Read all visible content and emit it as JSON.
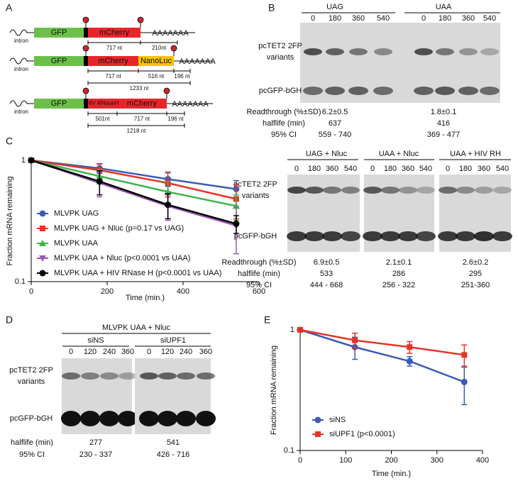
{
  "panel_labels": [
    "A",
    "B",
    "C",
    "D",
    "E"
  ],
  "panel_a": {
    "constructs": [
      {
        "intron": "intron",
        "segments": [
          "GFP",
          "mCherry"
        ],
        "poly_a": "AAAAAAA",
        "lengths": [
          "717 nt",
          "210nt"
        ]
      },
      {
        "intron": "intron",
        "segments": [
          "GFP",
          "mCherry",
          "NanoLuc"
        ],
        "poly_a": "AAAAAAA",
        "lengths": [
          "717 nt",
          "516 nt",
          "196 nt"
        ],
        "total": "1233 nt"
      },
      {
        "intron": "intron",
        "segments": [
          "GFP",
          "HIV RNaseH",
          "mCherry"
        ],
        "poly_a": "AAAAAAA",
        "lengths": [
          "501nt",
          "717 nt",
          "196 nt"
        ],
        "total": "1218 nt"
      }
    ]
  },
  "panel_b": {
    "top": {
      "groups": [
        "UAG",
        "UAA"
      ],
      "lanes": [
        0,
        180,
        360,
        540
      ],
      "band_upper": [
        "pcTET2 2FP",
        "variants"
      ],
      "band_lower": "pcGFP-bGH",
      "stats": [
        {
          "label": "Readthrough (%±SD)",
          "values": [
            "6.2±0.5",
            "1.8±0.1"
          ]
        },
        {
          "label": "halflife (min)",
          "values": [
            637,
            416
          ]
        },
        {
          "label": "95% CI",
          "values": [
            "559 - 740",
            "369 - 477"
          ]
        }
      ]
    },
    "bottom": {
      "groups": [
        "UAG + Nluc",
        "UAA + Nluc",
        "UAA + HIV RH"
      ],
      "lanes": [
        0,
        180,
        360,
        540
      ],
      "band_upper": [
        "pcTET2 2FP",
        "variants"
      ],
      "band_lower": "pcGFP-bGH",
      "stats": [
        {
          "label": "Readthrough (%±SD)",
          "values": [
            "6.9±0.5",
            "2.1±0.1",
            "2.6±0.2"
          ]
        },
        {
          "label": "halflife (min)",
          "values": [
            533,
            286,
            295
          ]
        },
        {
          "label": "95% CI",
          "values": [
            "444 - 668",
            "256 - 322",
            "251-360"
          ]
        }
      ]
    }
  },
  "chart_data": [
    {
      "type": "line",
      "x_label": "Time (min.)",
      "y_label": "Fraction mRNA remaining",
      "x": [
        0,
        180,
        360,
        540
      ],
      "xlim": [
        0,
        600
      ],
      "xticks": [
        0,
        200,
        400,
        600
      ],
      "ylim": [
        0.1,
        1
      ],
      "yticks": [
        0.1,
        1
      ],
      "y_scale": "log",
      "legend": "lower left",
      "series": [
        {
          "name": "MLVPK UAG",
          "color": "#3a5bb5",
          "marker": "circle",
          "values": [
            1,
            0.86,
            0.7,
            0.58
          ],
          "errors": [
            0,
            0.08,
            0.09,
            0.1
          ]
        },
        {
          "name": "MLVPK UAG + Nluc (p=0.17 vs UAG)",
          "color": "#e53528",
          "marker": "square",
          "values": [
            1,
            0.83,
            0.65,
            0.48
          ],
          "errors": [
            0,
            0.1,
            0.15,
            0.15
          ]
        },
        {
          "name": "MLVPK UAA",
          "color": "#3cb44b",
          "marker": "triangle",
          "values": [
            1,
            0.74,
            0.55,
            0.42
          ],
          "errors": [
            0,
            0.1,
            0.12,
            0.1
          ]
        },
        {
          "name": "MLVPK UAA + Nluc (p<0.0001 vs UAA)",
          "color": "#9b59b6",
          "marker": "triangle-down",
          "values": [
            1,
            0.65,
            0.42,
            0.29
          ],
          "errors": [
            0,
            0.15,
            0.1,
            0.12
          ]
        },
        {
          "name": "MLVPK UAA + HIV RNase H (p<0.0001 vs UAA)",
          "color": "#000000",
          "marker": "circle",
          "values": [
            1,
            0.67,
            0.43,
            0.3
          ],
          "errors": [
            0,
            0.15,
            0.1,
            0.05
          ]
        }
      ]
    },
    {
      "type": "line",
      "x_label": "Time (min.)",
      "y_label": "Fraction mRNA remaining",
      "x": [
        0,
        120,
        240,
        360
      ],
      "xlim": [
        0,
        400
      ],
      "xticks": [
        0,
        100,
        200,
        300,
        400
      ],
      "ylim": [
        0.1,
        1
      ],
      "yticks": [
        0.1,
        1
      ],
      "y_scale": "log",
      "legend": "lower left",
      "series": [
        {
          "name": "siNS",
          "color": "#3a5bb5",
          "marker": "circle",
          "values": [
            1,
            0.72,
            0.55,
            0.37
          ],
          "errors": [
            0,
            0.15,
            0.05,
            0.13
          ]
        },
        {
          "name": "siUPF1 (p<0.0001)",
          "color": "#e53528",
          "marker": "square",
          "values": [
            1,
            0.82,
            0.72,
            0.62
          ],
          "errors": [
            0,
            0.12,
            0.08,
            0.13
          ]
        }
      ]
    }
  ],
  "panel_d": {
    "title": "MLVPK UAA + Nluc",
    "groups": [
      "siNS",
      "siUPF1"
    ],
    "lanes": [
      0,
      120,
      240,
      360
    ],
    "band_upper": [
      "pcTET2 2FP",
      "variants"
    ],
    "band_lower": "pcGFP-bGH",
    "stats": [
      {
        "label": "halflife (min)",
        "values": [
          277,
          541
        ]
      },
      {
        "label": "95% CI",
        "values": [
          "230 - 337",
          "426 - 716"
        ]
      }
    ]
  }
}
